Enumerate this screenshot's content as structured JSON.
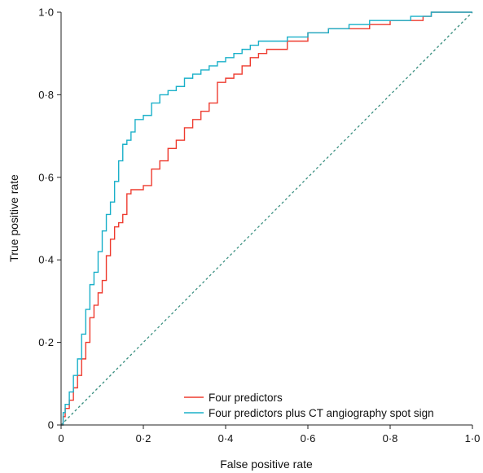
{
  "chart_data": {
    "type": "line",
    "xlabel": "False positive rate",
    "ylabel": "True positive rate",
    "xlim": [
      0,
      1
    ],
    "ylim": [
      0,
      1
    ],
    "x_ticks": [
      "0",
      "0·2",
      "0·4",
      "0·6",
      "0·8",
      "1·0"
    ],
    "y_ticks": [
      "0",
      "0·2",
      "0·4",
      "0·6",
      "0·8",
      "1·0"
    ],
    "grid": false,
    "legend_position": "bottom-right",
    "reference_line": {
      "style": "dashed",
      "color": "#3a8f80",
      "x": [
        0,
        1
      ],
      "y": [
        0,
        1
      ]
    },
    "series": [
      {
        "name": "Four predictors",
        "color": "#ee3b2f",
        "x": [
          0,
          0.005,
          0.01,
          0.02,
          0.03,
          0.04,
          0.05,
          0.06,
          0.07,
          0.08,
          0.09,
          0.1,
          0.11,
          0.12,
          0.13,
          0.14,
          0.15,
          0.16,
          0.17,
          0.18,
          0.2,
          0.22,
          0.24,
          0.26,
          0.28,
          0.3,
          0.32,
          0.34,
          0.36,
          0.38,
          0.4,
          0.42,
          0.44,
          0.46,
          0.48,
          0.5,
          0.55,
          0.6,
          0.65,
          0.7,
          0.75,
          0.8,
          0.85,
          0.88,
          0.9,
          0.95,
          1.0
        ],
        "y": [
          0,
          0.02,
          0.04,
          0.06,
          0.09,
          0.12,
          0.16,
          0.2,
          0.26,
          0.29,
          0.32,
          0.35,
          0.41,
          0.45,
          0.48,
          0.49,
          0.51,
          0.56,
          0.57,
          0.57,
          0.58,
          0.62,
          0.64,
          0.67,
          0.69,
          0.72,
          0.74,
          0.76,
          0.78,
          0.83,
          0.84,
          0.85,
          0.87,
          0.89,
          0.9,
          0.91,
          0.93,
          0.95,
          0.96,
          0.96,
          0.97,
          0.98,
          0.98,
          0.99,
          1.0,
          1.0,
          1.0
        ]
      },
      {
        "name": "Four predictors plus CT angiography spot sign",
        "color": "#1ab0c9",
        "x": [
          0,
          0.005,
          0.01,
          0.02,
          0.03,
          0.04,
          0.05,
          0.06,
          0.07,
          0.08,
          0.09,
          0.1,
          0.11,
          0.12,
          0.13,
          0.14,
          0.15,
          0.16,
          0.17,
          0.18,
          0.2,
          0.22,
          0.24,
          0.26,
          0.28,
          0.3,
          0.32,
          0.34,
          0.36,
          0.38,
          0.4,
          0.42,
          0.44,
          0.46,
          0.48,
          0.5,
          0.55,
          0.6,
          0.65,
          0.7,
          0.75,
          0.8,
          0.85,
          0.88,
          0.9,
          0.95,
          1.0
        ],
        "y": [
          0,
          0.03,
          0.05,
          0.08,
          0.12,
          0.16,
          0.22,
          0.28,
          0.34,
          0.37,
          0.42,
          0.47,
          0.51,
          0.54,
          0.59,
          0.64,
          0.68,
          0.69,
          0.71,
          0.74,
          0.75,
          0.78,
          0.8,
          0.81,
          0.82,
          0.84,
          0.85,
          0.86,
          0.87,
          0.88,
          0.89,
          0.9,
          0.91,
          0.92,
          0.93,
          0.93,
          0.94,
          0.95,
          0.96,
          0.97,
          0.98,
          0.98,
          0.99,
          0.99,
          1.0,
          1.0,
          1.0
        ]
      }
    ]
  }
}
